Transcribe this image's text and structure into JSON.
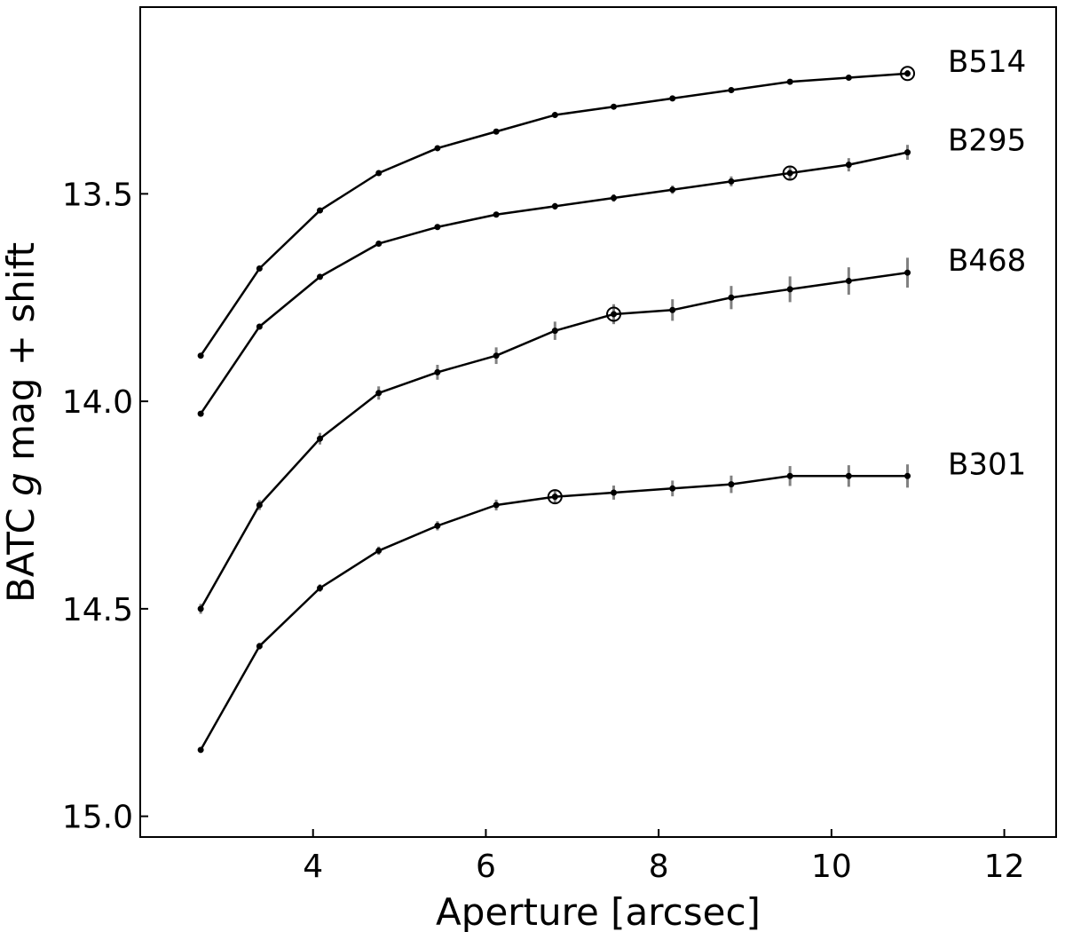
{
  "chart_data": {
    "type": "line",
    "xlabel": "Aperture [arcsec]",
    "ylabel_parts": [
      "BATC ",
      "g",
      " mag + shift"
    ],
    "xlim": [
      2.0,
      12.6
    ],
    "ylim": [
      15.05,
      13.05
    ],
    "y_inverted": true,
    "xticks": [
      4,
      6,
      8,
      10,
      12
    ],
    "xtick_labels": [
      "4",
      "6",
      "8",
      "10",
      "12"
    ],
    "yticks": [
      13.5,
      14.0,
      14.5,
      15.0
    ],
    "ytick_labels": [
      "13.5",
      "14.0",
      "14.5",
      "15.0"
    ],
    "grid": false,
    "x": [
      2.7,
      3.38,
      4.08,
      4.76,
      5.44,
      6.12,
      6.8,
      7.48,
      8.16,
      8.84,
      9.52,
      10.2,
      10.88
    ],
    "series": [
      {
        "name": "B514",
        "values": [
          13.89,
          13.68,
          13.54,
          13.45,
          13.39,
          13.35,
          13.31,
          13.29,
          13.27,
          13.25,
          13.23,
          13.22,
          13.21
        ],
        "errors": [
          0.005,
          0.005,
          0.005,
          0.005,
          0.005,
          0.005,
          0.005,
          0.005,
          0.005,
          0.005,
          0.006,
          0.006,
          0.008
        ],
        "marked_index": 12
      },
      {
        "name": "B295",
        "values": [
          14.03,
          13.82,
          13.7,
          13.62,
          13.58,
          13.55,
          13.53,
          13.51,
          13.49,
          13.47,
          13.45,
          13.43,
          13.4
        ],
        "errors": [
          0.005,
          0.005,
          0.006,
          0.006,
          0.007,
          0.007,
          0.008,
          0.009,
          0.01,
          0.012,
          0.014,
          0.016,
          0.018
        ],
        "marked_index": 10
      },
      {
        "name": "B468",
        "values": [
          14.5,
          14.25,
          14.09,
          13.98,
          13.93,
          13.89,
          13.83,
          13.79,
          13.78,
          13.75,
          13.73,
          13.71,
          13.69
        ],
        "errors": [
          0.012,
          0.012,
          0.014,
          0.016,
          0.018,
          0.02,
          0.022,
          0.024,
          0.026,
          0.028,
          0.031,
          0.033,
          0.036
        ],
        "marked_index": 7
      },
      {
        "name": "B301",
        "values": [
          14.84,
          14.59,
          14.45,
          14.36,
          14.3,
          14.25,
          14.23,
          14.22,
          14.21,
          14.2,
          14.18,
          14.18,
          14.18
        ],
        "errors": [
          0.007,
          0.008,
          0.009,
          0.01,
          0.011,
          0.013,
          0.015,
          0.017,
          0.019,
          0.021,
          0.024,
          0.026,
          0.028
        ],
        "marked_index": 6
      }
    ]
  }
}
